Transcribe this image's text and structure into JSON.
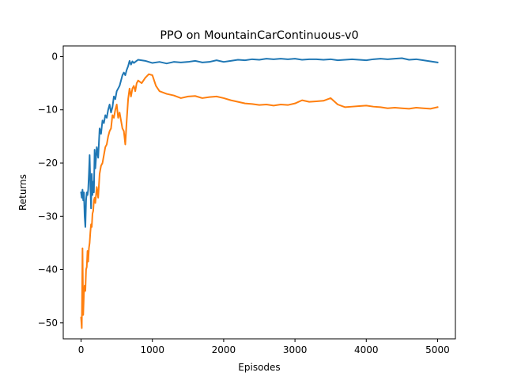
{
  "chart_data": {
    "type": "line",
    "title": "PPO on MountainCarContinuous-v0",
    "xlabel": "Episodes",
    "ylabel": "Returns",
    "xlim": [
      -250,
      5250
    ],
    "ylim": [
      -53,
      2
    ],
    "xticks": [
      0,
      1000,
      2000,
      3000,
      4000,
      5000
    ],
    "xtick_labels": [
      "0",
      "1000",
      "2000",
      "3000",
      "4000",
      "5000"
    ],
    "yticks": [
      -50,
      -40,
      -30,
      -20,
      -10,
      0
    ],
    "ytick_labels": [
      "−50",
      "−40",
      "−30",
      "−20",
      "−10",
      "0"
    ],
    "grid": false,
    "legend": "none",
    "series": [
      {
        "color": "#1f77b4",
        "x": [
          0,
          10,
          20,
          30,
          40,
          50,
          60,
          70,
          80,
          90,
          100,
          110,
          120,
          130,
          140,
          150,
          160,
          170,
          180,
          190,
          200,
          220,
          240,
          260,
          280,
          300,
          320,
          340,
          360,
          380,
          400,
          420,
          440,
          460,
          480,
          500,
          520,
          540,
          560,
          580,
          600,
          620,
          640,
          660,
          680,
          700,
          720,
          740,
          760,
          780,
          800,
          900,
          1000,
          1100,
          1200,
          1300,
          1400,
          1500,
          1600,
          1700,
          1800,
          1900,
          2000,
          2100,
          2200,
          2300,
          2400,
          2500,
          2600,
          2700,
          2800,
          2900,
          3000,
          3100,
          3200,
          3300,
          3400,
          3500,
          3600,
          3700,
          3800,
          3900,
          4000,
          4100,
          4200,
          4300,
          4400,
          4500,
          4600,
          4700,
          4800,
          4900,
          5000
        ],
        "values": [
          -25.5,
          -26.5,
          -25,
          -27,
          -25.5,
          -30.0,
          -32.0,
          -27.0,
          -25.5,
          -26.0,
          -25.0,
          -22.0,
          -18.5,
          -24.0,
          -28.5,
          -22.0,
          -26.0,
          -23.5,
          -25.5,
          -17.5,
          -21.0,
          -17.0,
          -19.0,
          -13.5,
          -14.5,
          -12.0,
          -12.5,
          -11.0,
          -11.5,
          -10.0,
          -9.0,
          -10.5,
          -9.5,
          -7.5,
          -8.0,
          -6.5,
          -6.0,
          -5.5,
          -4.5,
          -3.5,
          -3.0,
          -3.5,
          -2.5,
          -1.8,
          -0.8,
          -1.5,
          -0.9,
          -1.2,
          -1.0,
          -0.8,
          -0.6,
          -0.8,
          -1.2,
          -1.0,
          -1.3,
          -1.0,
          -1.1,
          -1.0,
          -0.8,
          -1.1,
          -1.0,
          -0.7,
          -1.0,
          -0.8,
          -0.6,
          -0.7,
          -0.5,
          -0.6,
          -0.4,
          -0.5,
          -0.4,
          -0.5,
          -0.4,
          -0.6,
          -0.5,
          -0.5,
          -0.6,
          -0.5,
          -0.7,
          -0.6,
          -0.5,
          -0.6,
          -0.7,
          -0.5,
          -0.4,
          -0.5,
          -0.4,
          -0.3,
          -0.6,
          -0.5,
          -0.7,
          -0.9,
          -1.1
        ]
      },
      {
        "color": "#ff7f0e",
        "x": [
          0,
          10,
          20,
          30,
          40,
          50,
          60,
          70,
          80,
          90,
          100,
          110,
          120,
          130,
          140,
          150,
          160,
          170,
          180,
          190,
          200,
          220,
          240,
          260,
          280,
          300,
          320,
          340,
          360,
          380,
          400,
          420,
          440,
          460,
          480,
          500,
          520,
          540,
          560,
          580,
          600,
          620,
          640,
          660,
          680,
          700,
          720,
          740,
          760,
          780,
          800,
          850,
          900,
          950,
          1000,
          1050,
          1100,
          1200,
          1300,
          1400,
          1500,
          1600,
          1700,
          1800,
          1900,
          2000,
          2100,
          2200,
          2300,
          2400,
          2500,
          2600,
          2700,
          2800,
          2900,
          3000,
          3100,
          3200,
          3300,
          3400,
          3500,
          3600,
          3700,
          3800,
          3900,
          4000,
          4100,
          4200,
          4300,
          4400,
          4500,
          4600,
          4700,
          4800,
          4900,
          5000
        ],
        "values": [
          -49.0,
          -51.0,
          -36.0,
          -48.5,
          -44.5,
          -43.0,
          -44.0,
          -40.0,
          -39.5,
          -36.5,
          -38.5,
          -36.0,
          -35.0,
          -33.0,
          -31.5,
          -32.0,
          -29.5,
          -29.0,
          -27.0,
          -26.5,
          -27.5,
          -24.5,
          -26.5,
          -22.0,
          -20.5,
          -20.0,
          -18.5,
          -17.0,
          -16.5,
          -15.0,
          -14.0,
          -13.5,
          -11.0,
          -11.5,
          -10.0,
          -9.0,
          -11.5,
          -10.5,
          -12.0,
          -13.5,
          -14.0,
          -16.5,
          -12.0,
          -8.0,
          -6.0,
          -7.5,
          -6.0,
          -5.5,
          -6.5,
          -5.0,
          -4.5,
          -5.0,
          -4.0,
          -3.3,
          -3.5,
          -5.5,
          -6.5,
          -7.0,
          -7.3,
          -7.8,
          -7.5,
          -7.4,
          -7.8,
          -7.6,
          -7.5,
          -7.8,
          -8.2,
          -8.5,
          -8.8,
          -8.9,
          -9.1,
          -9.0,
          -9.2,
          -9.0,
          -9.1,
          -8.8,
          -8.2,
          -8.5,
          -8.4,
          -8.3,
          -7.8,
          -9.0,
          -9.5,
          -9.4,
          -9.3,
          -9.2,
          -9.4,
          -9.5,
          -9.7,
          -9.6,
          -9.7,
          -9.8,
          -9.6,
          -9.7,
          -9.8,
          -9.5
        ]
      }
    ]
  }
}
